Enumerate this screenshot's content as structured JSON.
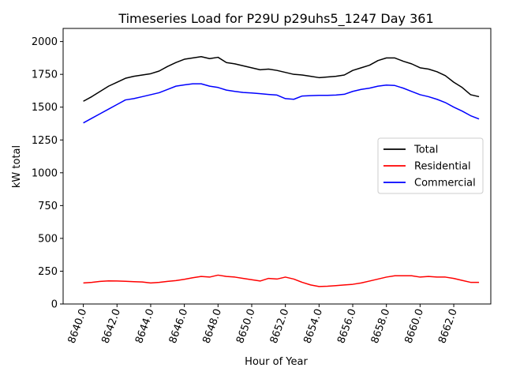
{
  "chart_data": {
    "type": "line",
    "title": "Timeseries Load for P29U p29uhs5_1247  Day 361",
    "xlabel": "Hour of Year",
    "ylabel": "kW total",
    "xlim": [
      8638.8,
      8664.2
    ],
    "ylim": [
      0,
      2100
    ],
    "xticks": [
      8640,
      8642,
      8644,
      8646,
      8648,
      8650,
      8652,
      8654,
      8656,
      8658,
      8660,
      8662
    ],
    "xtick_labels": [
      "8640.0",
      "8642.0",
      "8644.0",
      "8646.0",
      "8648.0",
      "8650.0",
      "8652.0",
      "8654.0",
      "8656.0",
      "8658.0",
      "8660.0",
      "8662.0"
    ],
    "yticks": [
      0,
      250,
      500,
      750,
      1000,
      1250,
      1500,
      1750,
      2000
    ],
    "ytick_labels": [
      "0",
      "250",
      "500",
      "750",
      "1000",
      "1250",
      "1500",
      "1750",
      "2000"
    ],
    "legend_position": "center-right",
    "x": [
      8640,
      8640.5,
      8641,
      8641.5,
      8642,
      8642.5,
      8643,
      8643.5,
      8644,
      8644.5,
      8645,
      8645.5,
      8646,
      8646.5,
      8647,
      8647.5,
      8648,
      8648.5,
      8649,
      8649.5,
      8650,
      8650.5,
      8651,
      8651.5,
      8652,
      8652.5,
      8653,
      8653.5,
      8654,
      8654.5,
      8655,
      8655.5,
      8656,
      8656.5,
      8657,
      8657.5,
      8658,
      8658.5,
      8659,
      8659.5,
      8660,
      8660.5,
      8661,
      8661.5,
      8662,
      8662.5,
      8663,
      8663.5
    ],
    "series": [
      {
        "name": "Total",
        "color": "#000000",
        "values": [
          1545,
          1580,
          1620,
          1660,
          1690,
          1720,
          1735,
          1745,
          1755,
          1775,
          1810,
          1840,
          1865,
          1875,
          1885,
          1870,
          1880,
          1840,
          1830,
          1815,
          1800,
          1785,
          1790,
          1780,
          1765,
          1750,
          1745,
          1735,
          1725,
          1730,
          1735,
          1745,
          1780,
          1800,
          1820,
          1855,
          1875,
          1875,
          1850,
          1830,
          1800,
          1790,
          1770,
          1740,
          1690,
          1650,
          1595,
          1580
        ]
      },
      {
        "name": "Residential",
        "color": "#ff0000",
        "values": [
          160,
          165,
          172,
          176,
          175,
          173,
          170,
          168,
          160,
          165,
          172,
          178,
          188,
          200,
          210,
          205,
          220,
          210,
          205,
          195,
          185,
          175,
          195,
          190,
          205,
          190,
          165,
          145,
          133,
          135,
          140,
          145,
          150,
          160,
          175,
          190,
          205,
          215,
          215,
          215,
          205,
          210,
          205,
          205,
          195,
          180,
          165,
          165
        ]
      },
      {
        "name": "Commercial",
        "color": "#0000ff",
        "values": [
          1380,
          1415,
          1450,
          1485,
          1520,
          1555,
          1565,
          1580,
          1595,
          1610,
          1635,
          1660,
          1670,
          1678,
          1678,
          1660,
          1650,
          1630,
          1620,
          1612,
          1608,
          1603,
          1597,
          1592,
          1565,
          1560,
          1585,
          1588,
          1590,
          1590,
          1592,
          1598,
          1620,
          1635,
          1645,
          1660,
          1668,
          1665,
          1645,
          1620,
          1595,
          1580,
          1560,
          1535,
          1500,
          1470,
          1435,
          1410
        ]
      }
    ]
  }
}
